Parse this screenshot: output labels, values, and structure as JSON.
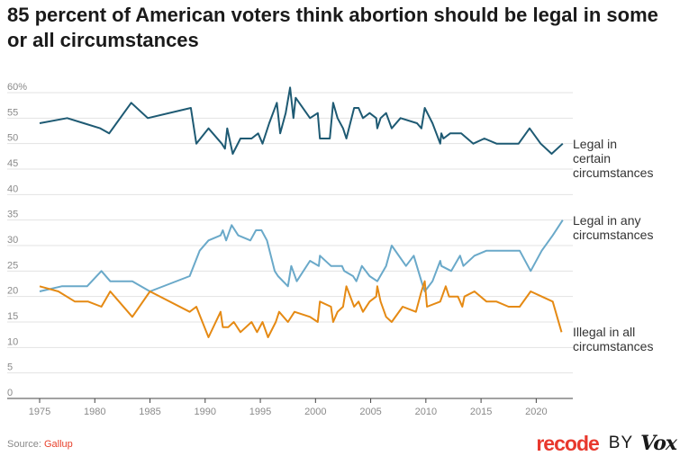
{
  "title": "85 percent of American voters think abortion should be legal in some or all circumstances",
  "source_prefix": "Source: ",
  "source_name": "Gallup",
  "brand": {
    "recode": "recode",
    "by": "BY",
    "vox": "Vox"
  },
  "colors": {
    "legal_certain": "#1e5a73",
    "legal_any": "#6aa9c9",
    "illegal_all": "#e58a14",
    "grid": "#e3e3e3",
    "axis": "#444444",
    "brand_red": "#e8382d"
  },
  "chart_data": {
    "type": "line",
    "title": "85 percent of American voters think abortion should be legal in some or all circumstances",
    "xlabel": "",
    "ylabel": "",
    "xlim": [
      1975,
      2022.5
    ],
    "ylim": [
      0,
      60
    ],
    "grid": true,
    "x_ticks": [
      1975,
      1980,
      1985,
      1990,
      1995,
      2000,
      2005,
      2010,
      2015,
      2020
    ],
    "y_ticks": [
      0,
      5,
      10,
      15,
      20,
      25,
      30,
      35,
      40,
      45,
      50,
      55,
      60
    ],
    "y_tick_labels": [
      "0",
      "5",
      "10",
      "15",
      "20",
      "25",
      "30",
      "35",
      "40",
      "45",
      "50",
      "55",
      "60%"
    ],
    "series": [
      {
        "name": "Legal in certain circumstances",
        "label_lines": [
          "Legal in",
          "certain",
          "circumstances"
        ],
        "points": [
          [
            1975,
            54
          ],
          [
            1977.5,
            55
          ],
          [
            1979,
            54
          ],
          [
            1980.5,
            53
          ],
          [
            1981.3,
            52
          ],
          [
            1983.3,
            58
          ],
          [
            1984.8,
            55
          ],
          [
            1988.7,
            57
          ],
          [
            1989.2,
            50
          ],
          [
            1990.3,
            53
          ],
          [
            1991.5,
            50
          ],
          [
            1991.8,
            49
          ],
          [
            1992,
            53
          ],
          [
            1992.5,
            48
          ],
          [
            1993.2,
            51
          ],
          [
            1994.2,
            51
          ],
          [
            1994.8,
            52
          ],
          [
            1995.2,
            50
          ],
          [
            1995.8,
            54
          ],
          [
            1996.5,
            58
          ],
          [
            1996.8,
            52
          ],
          [
            1997.3,
            56
          ],
          [
            1997.7,
            61
          ],
          [
            1998,
            55
          ],
          [
            1998.2,
            59
          ],
          [
            1999.5,
            55
          ],
          [
            2000.2,
            56
          ],
          [
            2000.4,
            51
          ],
          [
            2001.3,
            51
          ],
          [
            2001.6,
            58
          ],
          [
            2002,
            55
          ],
          [
            2002.5,
            53
          ],
          [
            2002.8,
            51
          ],
          [
            2003.5,
            57
          ],
          [
            2003.9,
            57
          ],
          [
            2004.3,
            55
          ],
          [
            2004.9,
            56
          ],
          [
            2005.5,
            55
          ],
          [
            2005.6,
            53
          ],
          [
            2005.9,
            55
          ],
          [
            2006.4,
            56
          ],
          [
            2006.9,
            53
          ],
          [
            2007.7,
            55
          ],
          [
            2009.2,
            54
          ],
          [
            2009.6,
            53
          ],
          [
            2009.9,
            57
          ],
          [
            2010.6,
            54
          ],
          [
            2011.3,
            50
          ],
          [
            2011.4,
            52
          ],
          [
            2011.6,
            51
          ],
          [
            2012.2,
            52
          ],
          [
            2013.2,
            52
          ],
          [
            2014.3,
            50
          ],
          [
            2015.3,
            51
          ],
          [
            2016.4,
            50
          ],
          [
            2018.4,
            50
          ],
          [
            2019.4,
            53
          ],
          [
            2020.4,
            50
          ],
          [
            2021.4,
            48
          ],
          [
            2022.4,
            50
          ]
        ]
      },
      {
        "name": "Legal in any circumstances",
        "label_lines": [
          "Legal in any",
          "circumstances"
        ],
        "points": [
          [
            1975,
            21
          ],
          [
            1977,
            22
          ],
          [
            1979.3,
            22
          ],
          [
            1980.6,
            25
          ],
          [
            1981.4,
            23
          ],
          [
            1983.4,
            23
          ],
          [
            1985,
            21
          ],
          [
            1988.6,
            24
          ],
          [
            1989.5,
            29
          ],
          [
            1990.3,
            31
          ],
          [
            1991.4,
            32
          ],
          [
            1991.6,
            33
          ],
          [
            1991.9,
            31
          ],
          [
            1992.4,
            34
          ],
          [
            1993,
            32
          ],
          [
            1994.1,
            31
          ],
          [
            1994.6,
            33
          ],
          [
            1995.1,
            33
          ],
          [
            1995.6,
            31
          ],
          [
            1996.3,
            25
          ],
          [
            1996.6,
            24
          ],
          [
            1997.5,
            22
          ],
          [
            1997.8,
            26
          ],
          [
            1998.3,
            23
          ],
          [
            1999.5,
            27
          ],
          [
            2000.3,
            26
          ],
          [
            2000.4,
            28
          ],
          [
            2001.4,
            26
          ],
          [
            2002.4,
            26
          ],
          [
            2002.6,
            25
          ],
          [
            2003.4,
            24
          ],
          [
            2003.7,
            23
          ],
          [
            2004.2,
            26
          ],
          [
            2004.9,
            24
          ],
          [
            2005.6,
            23
          ],
          [
            2006.4,
            26
          ],
          [
            2006.9,
            30
          ],
          [
            2008.2,
            26
          ],
          [
            2008.9,
            28
          ],
          [
            2009.6,
            23
          ],
          [
            2009.9,
            21
          ],
          [
            2010.6,
            23
          ],
          [
            2011.3,
            27
          ],
          [
            2011.4,
            26
          ],
          [
            2012.3,
            25
          ],
          [
            2013.1,
            28
          ],
          [
            2013.4,
            26
          ],
          [
            2014.4,
            28
          ],
          [
            2015.5,
            29
          ],
          [
            2018.5,
            29
          ],
          [
            2019.5,
            25
          ],
          [
            2020.5,
            29
          ],
          [
            2021.5,
            32
          ],
          [
            2022.4,
            35
          ]
        ]
      },
      {
        "name": "Illegal in all circumstances",
        "label_lines": [
          "Illegal in all",
          "circumstances"
        ],
        "points": [
          [
            1975,
            22
          ],
          [
            1976.7,
            21
          ],
          [
            1978.2,
            19
          ],
          [
            1979.4,
            19
          ],
          [
            1980.6,
            18
          ],
          [
            1981.4,
            21
          ],
          [
            1983.4,
            16
          ],
          [
            1985,
            21
          ],
          [
            1988.6,
            17
          ],
          [
            1989.2,
            18
          ],
          [
            1990.3,
            12
          ],
          [
            1991.4,
            17
          ],
          [
            1991.6,
            14
          ],
          [
            1992.1,
            14
          ],
          [
            1992.6,
            15
          ],
          [
            1993.2,
            13
          ],
          [
            1994.2,
            15
          ],
          [
            1994.7,
            13
          ],
          [
            1995.2,
            15
          ],
          [
            1995.7,
            12
          ],
          [
            1996.4,
            15
          ],
          [
            1996.7,
            17
          ],
          [
            1997.5,
            15
          ],
          [
            1998.1,
            17
          ],
          [
            1999.5,
            16
          ],
          [
            2000.2,
            15
          ],
          [
            2000.4,
            19
          ],
          [
            2001.4,
            18
          ],
          [
            2001.6,
            15
          ],
          [
            2002,
            17
          ],
          [
            2002.5,
            18
          ],
          [
            2002.8,
            22
          ],
          [
            2003.5,
            18
          ],
          [
            2003.9,
            19
          ],
          [
            2004.3,
            17
          ],
          [
            2004.9,
            19
          ],
          [
            2005.5,
            20
          ],
          [
            2005.6,
            22
          ],
          [
            2005.9,
            19
          ],
          [
            2006.4,
            16
          ],
          [
            2006.9,
            15
          ],
          [
            2007.9,
            18
          ],
          [
            2009.1,
            17
          ],
          [
            2009.6,
            21
          ],
          [
            2009.9,
            23
          ],
          [
            2010.1,
            18
          ],
          [
            2011.3,
            19
          ],
          [
            2011.8,
            22
          ],
          [
            2012.1,
            20
          ],
          [
            2012.9,
            20
          ],
          [
            2013.3,
            18
          ],
          [
            2013.5,
            20
          ],
          [
            2014.4,
            21
          ],
          [
            2015.5,
            19
          ],
          [
            2016.4,
            19
          ],
          [
            2017.5,
            18
          ],
          [
            2018.5,
            18
          ],
          [
            2019.5,
            21
          ],
          [
            2020.5,
            20
          ],
          [
            2021.5,
            19
          ],
          [
            2022.3,
            13
          ]
        ]
      }
    ]
  }
}
